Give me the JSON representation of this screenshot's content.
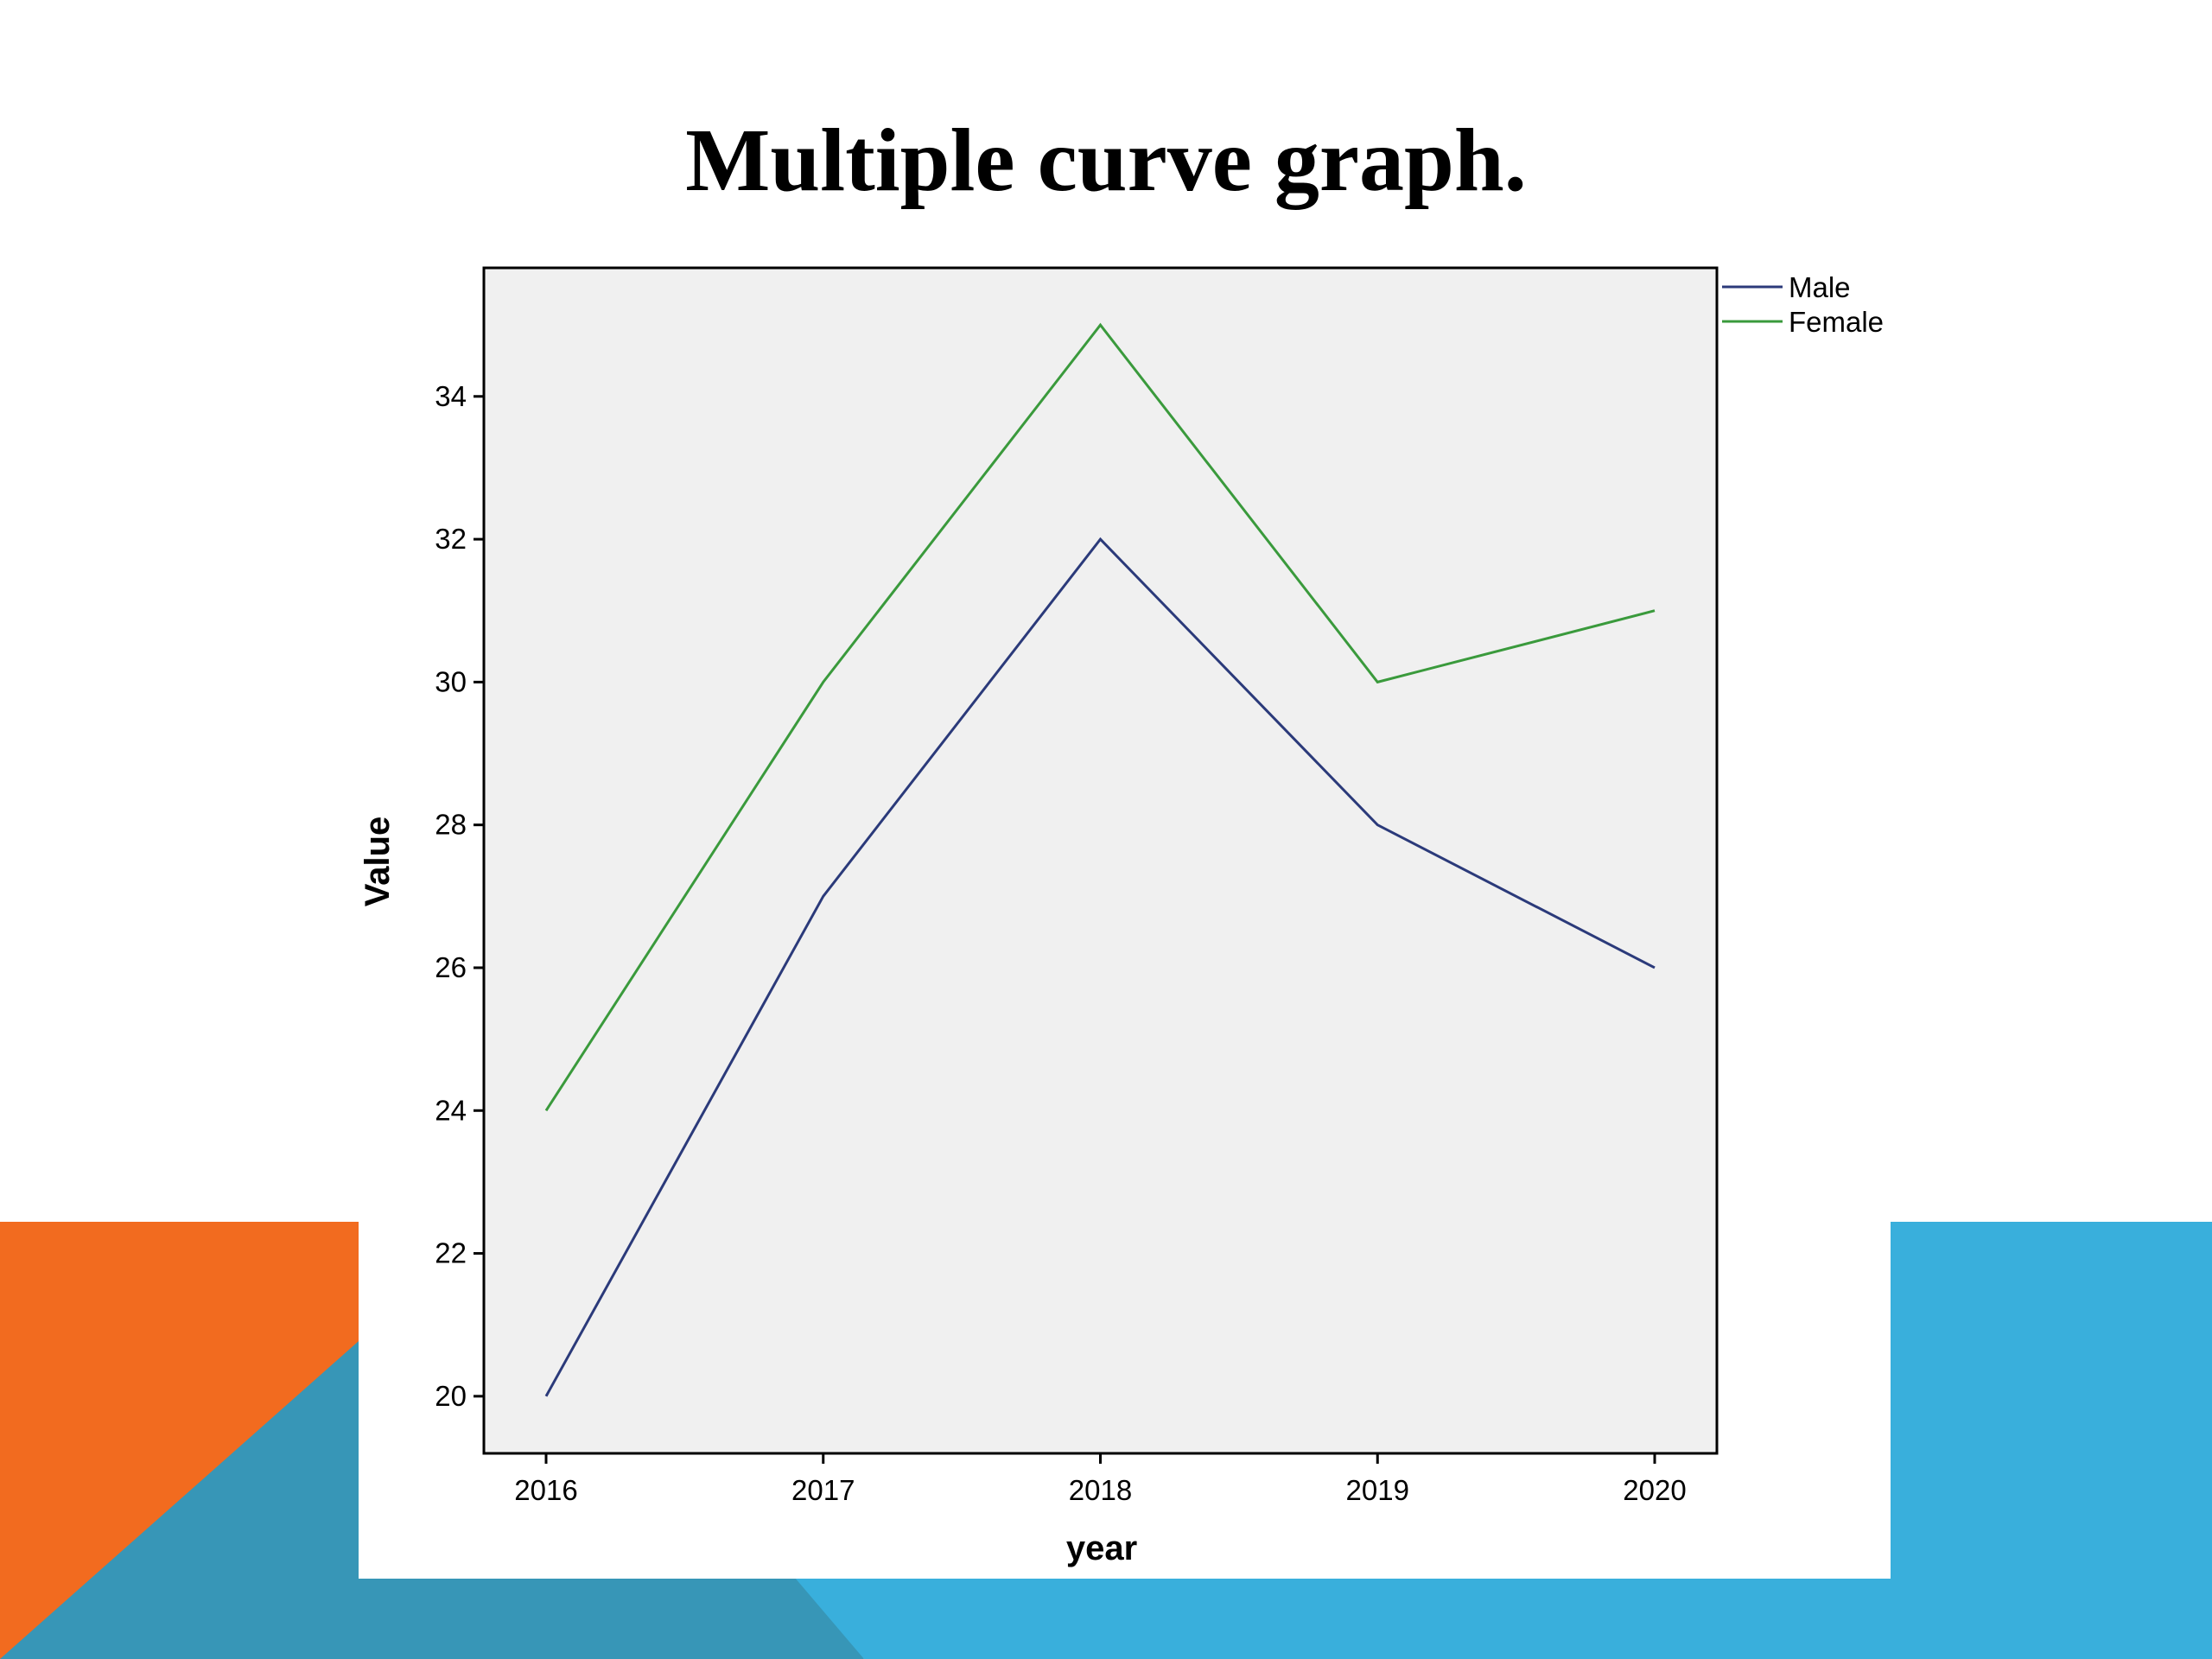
{
  "slide": {
    "title": "Multiple curve graph.",
    "colors": {
      "orange": "#f26b1f",
      "teal": "#3796b7",
      "sky": "#39afdc"
    }
  },
  "chart_data": {
    "type": "line",
    "x": [
      2016,
      2017,
      2018,
      2019,
      2020
    ],
    "series": [
      {
        "name": "Male",
        "color": "#2b3a7a",
        "values": [
          20,
          27,
          32,
          28,
          26
        ]
      },
      {
        "name": "Female",
        "color": "#3a9a3c",
        "values": [
          24,
          30,
          35,
          30,
          31
        ]
      }
    ],
    "xlabel": "year",
    "ylabel": "Value",
    "yticks": [
      20,
      22,
      24,
      26,
      28,
      30,
      32,
      34
    ],
    "ylim": [
      19.2,
      35.8
    ],
    "grid": false,
    "legend": "top-right-outside",
    "plot_background": "#f0f0f0"
  }
}
